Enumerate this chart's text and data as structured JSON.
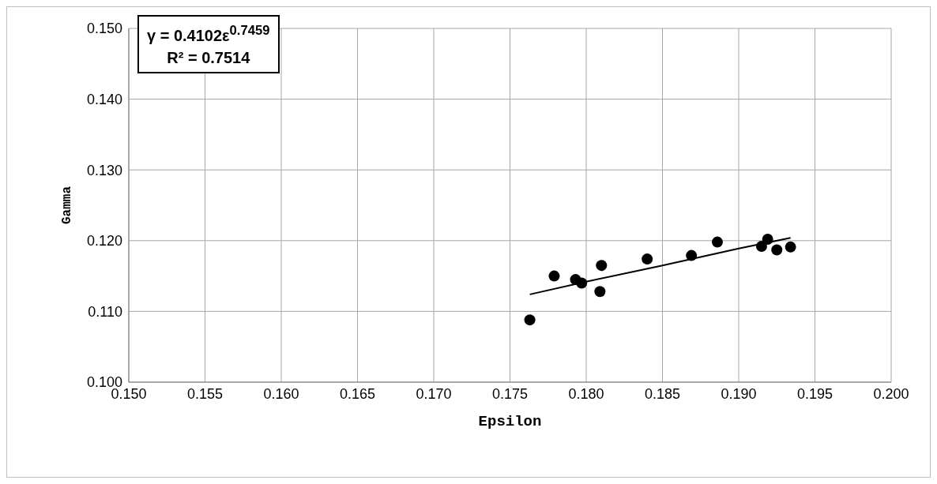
{
  "chart_data": {
    "type": "scatter",
    "xlabel": "Epsilon",
    "ylabel": "Gamma",
    "annotations": [
      "γ = 0.4102ε$^{0.7459}$",
      "R² = 0.7514"
    ],
    "series": [
      {
        "type": "scatter",
        "color": "#000000",
        "marker": "circle",
        "x": [
          0.1763,
          0.1779,
          0.1793,
          0.1797,
          0.181,
          0.1809,
          0.184,
          0.1869,
          0.1886,
          0.1915,
          0.1919,
          0.1925,
          0.1934
        ],
        "values": [
          0.1088,
          0.115,
          0.1145,
          0.114,
          0.1165,
          0.1128,
          0.1174,
          0.1179,
          0.1198,
          0.1192,
          0.1202,
          0.1187,
          0.1191
        ]
      },
      {
        "type": "line",
        "color": "#000000",
        "marker": "none",
        "line_style": "solid",
        "x": [
          0.1763,
          0.18,
          0.185,
          0.19,
          0.1934
        ],
        "values": [
          0.1124,
          0.1142,
          0.1165,
          0.1189,
          0.1204
        ]
      }
    ],
    "xlim": [
      0.15,
      0.2
    ],
    "xticks": [
      {
        "value": 0.15,
        "label": "0.150"
      },
      0.155,
      {
        "value": 0.16,
        "label": "0.160"
      },
      0.165,
      {
        "value": 0.17,
        "label": "0.170"
      },
      0.175,
      {
        "value": 0.18,
        "label": "0.180"
      },
      0.185,
      {
        "value": 0.19,
        "label": "0.190"
      },
      0.195,
      {
        "value": 0.2,
        "label": "0.200"
      }
    ],
    "ylim": [
      0.1,
      0.15
    ],
    "yticks": [
      {
        "value": 0.1,
        "label": "0.100"
      },
      {
        "value": 0.11,
        "label": "0.110"
      },
      {
        "value": 0.12,
        "label": "0.120"
      },
      {
        "value": 0.13,
        "label": "0.130"
      },
      {
        "value": 0.14,
        "label": "0.140"
      },
      {
        "value": 0.15,
        "label": "0.150"
      }
    ],
    "grid": true,
    "legend": false
  }
}
